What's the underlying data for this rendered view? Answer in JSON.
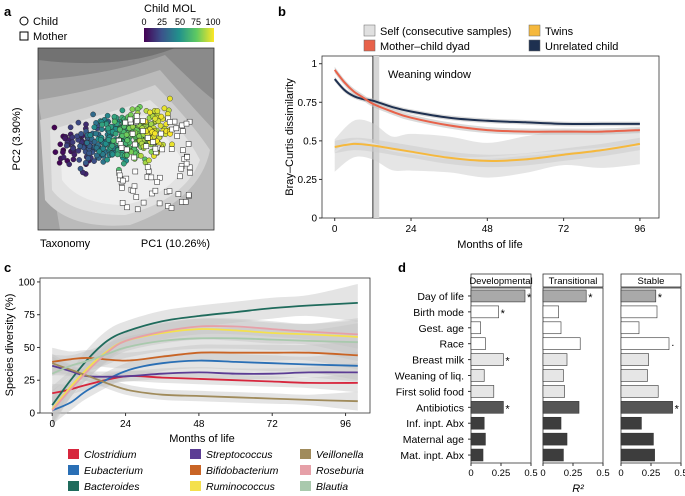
{
  "panel_labels": {
    "a": "a",
    "b": "b",
    "c": "c",
    "d": "d"
  },
  "chart_data": [
    {
      "panel": "a",
      "type": "scatter",
      "legend_shapes": [
        "Child",
        "Mother"
      ],
      "colorbar_title": "Child MOL",
      "colorbar_ticks": [
        0,
        25,
        50,
        75,
        100
      ],
      "xlabel": "PC1 (10.26%)",
      "ylabel": "PC2 (3.90%)",
      "corner_label": "Taxonomy",
      "description_points": "child samples colored by month of life (0-100), mother samples as white squares"
    },
    {
      "panel": "b",
      "type": "line",
      "title": "",
      "xlabel": "Months of life",
      "ylabel": "Bray–Curtis dissimilarity",
      "xlim": [
        -4,
        102
      ],
      "ylim": [
        0,
        1.05
      ],
      "xticks": [
        0,
        24,
        48,
        72,
        96
      ],
      "yticks": [
        0,
        0.25,
        0.5,
        0.75,
        1
      ],
      "ytick_labels": [
        "0",
        "0.25",
        "0.5",
        "0.75",
        "1"
      ],
      "annotation": "Weaning window",
      "weaning_window": [
        12,
        14
      ],
      "series": [
        {
          "name": "Self (consecutive samples)",
          "color": "#e0e0e0",
          "band_color": "#cfcfcf",
          "x": [
            0,
            6,
            12,
            18,
            24,
            36,
            48,
            60,
            72,
            84,
            96
          ],
          "y": [
            0.43,
            0.5,
            0.48,
            0.44,
            0.42,
            0.39,
            0.39,
            0.41,
            0.43,
            0.45,
            0.47
          ]
        },
        {
          "name": "Mother–child dyad",
          "color": "#e8624a",
          "band_color": "#bbbbbb",
          "x": [
            0,
            3,
            6,
            9,
            12,
            18,
            24,
            36,
            48,
            60,
            72,
            84,
            96
          ],
          "y": [
            0.96,
            0.88,
            0.82,
            0.78,
            0.74,
            0.69,
            0.65,
            0.6,
            0.57,
            0.56,
            0.56,
            0.56,
            0.57
          ]
        },
        {
          "name": "Twins",
          "color": "#f5b83d",
          "band_color": "#cccccc",
          "x": [
            0,
            6,
            12,
            18,
            24,
            36,
            48,
            60,
            72,
            84,
            96
          ],
          "y": [
            0.46,
            0.48,
            0.47,
            0.45,
            0.43,
            0.39,
            0.37,
            0.38,
            0.41,
            0.44,
            0.48
          ]
        },
        {
          "name": "Unrelated child",
          "color": "#1e3050",
          "band_color": "#bbbbbb",
          "x": [
            0,
            3,
            6,
            9,
            12,
            18,
            24,
            36,
            48,
            60,
            72,
            84,
            96
          ],
          "y": [
            0.9,
            0.83,
            0.79,
            0.77,
            0.76,
            0.72,
            0.69,
            0.65,
            0.63,
            0.62,
            0.61,
            0.61,
            0.61
          ]
        }
      ]
    },
    {
      "panel": "c",
      "type": "line",
      "xlabel": "Months of life",
      "ylabel": "Species diversity (%)",
      "xlim": [
        -4,
        104
      ],
      "ylim": [
        0,
        103
      ],
      "xticks": [
        0,
        24,
        48,
        72,
        96
      ],
      "yticks": [
        0,
        25,
        50,
        75,
        100
      ],
      "series": [
        {
          "name": "Clostridium",
          "color": "#d7263d",
          "x": [
            0,
            6,
            12,
            24,
            36,
            48,
            60,
            72,
            84,
            100
          ],
          "y": [
            15,
            18,
            22,
            28,
            27,
            26,
            25,
            24,
            23,
            23
          ]
        },
        {
          "name": "Eubacterium",
          "color": "#2a6fb5",
          "x": [
            0,
            6,
            12,
            24,
            36,
            48,
            60,
            72,
            84,
            100
          ],
          "y": [
            2,
            8,
            18,
            32,
            38,
            40,
            39,
            38,
            37,
            36
          ]
        },
        {
          "name": "Bacteroides",
          "color": "#1f6b5c",
          "x": [
            0,
            6,
            12,
            18,
            24,
            36,
            48,
            60,
            72,
            84,
            100
          ],
          "y": [
            6,
            25,
            42,
            55,
            62,
            70,
            74,
            77,
            80,
            82,
            84
          ]
        },
        {
          "name": "Streptococcus",
          "color": "#5b3c94",
          "x": [
            0,
            6,
            12,
            24,
            36,
            48,
            60,
            72,
            84,
            100
          ],
          "y": [
            36,
            32,
            28,
            28,
            30,
            31,
            30,
            30,
            31,
            31
          ]
        },
        {
          "name": "Bifidobacterium",
          "color": "#c96425",
          "x": [
            0,
            6,
            12,
            24,
            36,
            48,
            60,
            72,
            84,
            100
          ],
          "y": [
            39,
            41,
            42,
            40,
            43,
            46,
            46,
            46,
            46,
            44
          ]
        },
        {
          "name": "Ruminococcus",
          "color": "#f4e04d",
          "x": [
            0,
            6,
            12,
            18,
            24,
            36,
            48,
            60,
            72,
            84,
            100
          ],
          "y": [
            3,
            20,
            35,
            47,
            55,
            61,
            64,
            63,
            61,
            60,
            58
          ]
        },
        {
          "name": "Veillonella",
          "color": "#a08b5b",
          "x": [
            0,
            6,
            12,
            24,
            36,
            48,
            60,
            72,
            84,
            100
          ],
          "y": [
            38,
            33,
            28,
            18,
            14,
            13,
            12,
            11,
            10,
            9
          ]
        },
        {
          "name": "Roseburia",
          "color": "#e6a0a8",
          "x": [
            0,
            6,
            12,
            18,
            24,
            36,
            48,
            60,
            72,
            84,
            100
          ],
          "y": [
            2,
            18,
            33,
            46,
            55,
            62,
            66,
            66,
            64,
            62,
            60
          ]
        },
        {
          "name": "Blautia",
          "color": "#a9c9ad",
          "x": [
            0,
            6,
            12,
            18,
            24,
            36,
            48,
            60,
            72,
            84,
            100
          ],
          "y": [
            30,
            36,
            40,
            45,
            50,
            55,
            57,
            57,
            56,
            55,
            54
          ]
        }
      ]
    },
    {
      "panel": "d",
      "type": "bar",
      "orientation": "horizontal",
      "xlabel": "R²",
      "xlim": [
        0,
        0.5
      ],
      "xticks": [
        0,
        0.25,
        0.5
      ],
      "xtick_labels": [
        "0",
        "0.25",
        "0.5"
      ],
      "categories": [
        "Day of life",
        "Birth mode",
        "Gest. age",
        "Race",
        "Breast milk",
        "Weaning of liq.",
        "First solid food",
        "Antibiotics",
        "Inf. inpt. Abx",
        "Maternal age",
        "Mat. inpt. Abx"
      ],
      "bar_colors": [
        "#a9a9a9",
        "#ffffff",
        "#ffffff",
        "#ffffff",
        "#e6e6e6",
        "#e6e6e6",
        "#e6e6e6",
        "#555555",
        "#3d3d3d",
        "#3d3d3d",
        "#3d3d3d"
      ],
      "series": [
        {
          "name": "Developmental",
          "values": [
            0.45,
            0.23,
            0.08,
            0.12,
            0.27,
            0.11,
            0.19,
            0.27,
            0.11,
            0.12,
            0.1
          ],
          "marks": [
            "*",
            "*",
            "",
            "",
            "*",
            "",
            "",
            "*",
            "",
            "",
            ""
          ]
        },
        {
          "name": "Transitional",
          "values": [
            0.36,
            0.13,
            0.15,
            0.31,
            0.2,
            0.17,
            0.18,
            0.3,
            0.15,
            0.2,
            0.17
          ],
          "marks": [
            "*",
            "",
            "",
            "",
            "",
            "",
            "",
            "",
            "",
            "",
            ""
          ]
        },
        {
          "name": "Stable",
          "values": [
            0.29,
            0.3,
            0.15,
            0.4,
            0.23,
            0.22,
            0.31,
            0.43,
            0.17,
            0.27,
            0.28
          ],
          "marks": [
            "*",
            "",
            "",
            "·",
            "",
            "",
            "",
            "*",
            "",
            "",
            ""
          ]
        }
      ]
    }
  ]
}
